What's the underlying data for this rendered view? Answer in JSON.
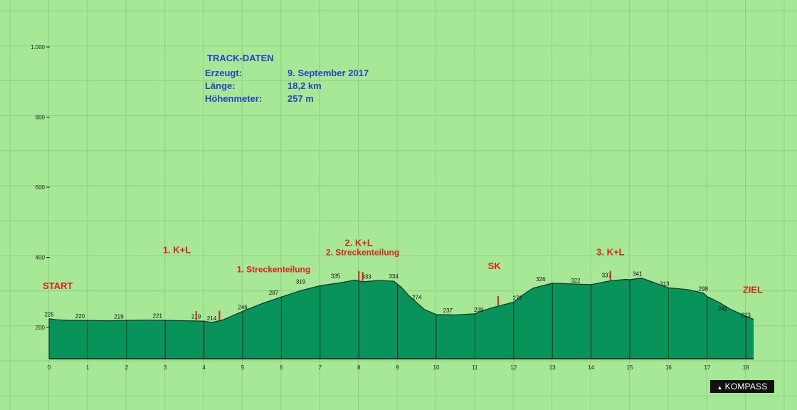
{
  "chart_data": {
    "type": "area",
    "x": [
      0,
      0.2,
      0.5,
      1,
      1.5,
      2,
      2.5,
      3,
      3.5,
      4,
      4.2,
      4.5,
      5,
      5.5,
      6,
      6.5,
      7,
      7.5,
      7.9,
      8,
      8.1,
      8.5,
      8.9,
      9.1,
      9.3,
      9.7,
      10,
      10.5,
      11,
      11.2,
      11.5,
      12,
      12.2,
      12.5,
      13,
      13.5,
      14,
      14.5,
      14.9,
      15,
      15.3,
      15.5,
      16,
      16.5,
      16.9,
      17,
      17.3,
      17.6,
      18,
      18.2
    ],
    "y": [
      225,
      222,
      220,
      220,
      219,
      220,
      221,
      220,
      219,
      218,
      214,
      222,
      246,
      268,
      287,
      305,
      319,
      327,
      335,
      333,
      330,
      334,
      332,
      315,
      290,
      251,
      237,
      236,
      239,
      248,
      258,
      272,
      290,
      312,
      326,
      324,
      322,
      333,
      337,
      336,
      341,
      333,
      313,
      308,
      298,
      288,
      272,
      252,
      232,
      223
    ],
    "xlim": [
      0,
      18.2
    ],
    "ylim": [
      100,
      1040
    ],
    "y_ticks": [
      200,
      400,
      600,
      800,
      1000
    ],
    "y_tick_labels": [
      "200",
      "400",
      "600",
      "800",
      "1.000"
    ],
    "x_ticks": [
      0,
      1,
      2,
      3,
      4,
      5,
      6,
      7,
      8,
      9,
      10,
      11,
      12,
      13,
      14,
      15,
      16,
      17,
      18
    ],
    "grid": true,
    "point_labels": [
      {
        "x": 0,
        "y": 225,
        "text": "225"
      },
      {
        "x": 0.8,
        "y": 220,
        "text": "220"
      },
      {
        "x": 1.8,
        "y": 219,
        "text": "219"
      },
      {
        "x": 2.8,
        "y": 221,
        "text": "221"
      },
      {
        "x": 3.8,
        "y": 219,
        "text": "219"
      },
      {
        "x": 4.2,
        "y": 214,
        "text": "214"
      },
      {
        "x": 5,
        "y": 246,
        "text": "246"
      },
      {
        "x": 5.8,
        "y": 287,
        "text": "287"
      },
      {
        "x": 6.5,
        "y": 319,
        "text": "319"
      },
      {
        "x": 7.4,
        "y": 335,
        "text": "335"
      },
      {
        "x": 8.2,
        "y": 333,
        "text": "333"
      },
      {
        "x": 8.9,
        "y": 334,
        "text": "334"
      },
      {
        "x": 9.5,
        "y": 274,
        "text": "274"
      },
      {
        "x": 10.3,
        "y": 237,
        "text": "237"
      },
      {
        "x": 11.1,
        "y": 239,
        "text": "239"
      },
      {
        "x": 12.1,
        "y": 272,
        "text": "272"
      },
      {
        "x": 12.7,
        "y": 326,
        "text": "326"
      },
      {
        "x": 13.6,
        "y": 322,
        "text": "322"
      },
      {
        "x": 14.4,
        "y": 337,
        "text": "337"
      },
      {
        "x": 15.2,
        "y": 341,
        "text": "341"
      },
      {
        "x": 15.9,
        "y": 313,
        "text": "313"
      },
      {
        "x": 16.9,
        "y": 298,
        "text": "298"
      },
      {
        "x": 17.4,
        "y": 242,
        "text": "242"
      },
      {
        "x": 18,
        "y": 223,
        "text": "223"
      }
    ],
    "annotations": [
      {
        "text": "START",
        "x": 0,
        "y": 310,
        "size": "large"
      },
      {
        "text": "1. K+L",
        "x": 3.3,
        "y": 412,
        "size": "large"
      },
      {
        "text": "1. Streckenteilung",
        "x": 5.8,
        "y": 357,
        "size": "small"
      },
      {
        "text": "2. K+L",
        "x": 8,
        "y": 432,
        "size": "large"
      },
      {
        "text": "2. Streckenteilung",
        "x": 8.1,
        "y": 406,
        "size": "small"
      },
      {
        "text": "SK",
        "x": 11.5,
        "y": 366,
        "size": "large"
      },
      {
        "text": "3. K+L",
        "x": 14.5,
        "y": 406,
        "size": "large"
      },
      {
        "text": "ZIEL",
        "x": 18.2,
        "y": 298,
        "size": "large"
      }
    ],
    "markers": [
      3.8,
      4.4,
      8.0,
      8.1,
      11.6,
      14.5
    ]
  },
  "track_info": {
    "title": "TRACK-DATEN",
    "rows": [
      {
        "label": "Erzeugt:",
        "value": "9. September 2017"
      },
      {
        "label": "Länge:",
        "value": "18,2 km"
      },
      {
        "label": "Höhenmeter:",
        "value": "257 m"
      }
    ]
  },
  "logo_text": "KOMPASS",
  "colors": {
    "background": "#a6e896",
    "grid": "#8fcf82",
    "area_fill": "#079359",
    "profile_line": "#12332a",
    "annotation": "#e0201c",
    "info_text": "#2b3fc8"
  }
}
